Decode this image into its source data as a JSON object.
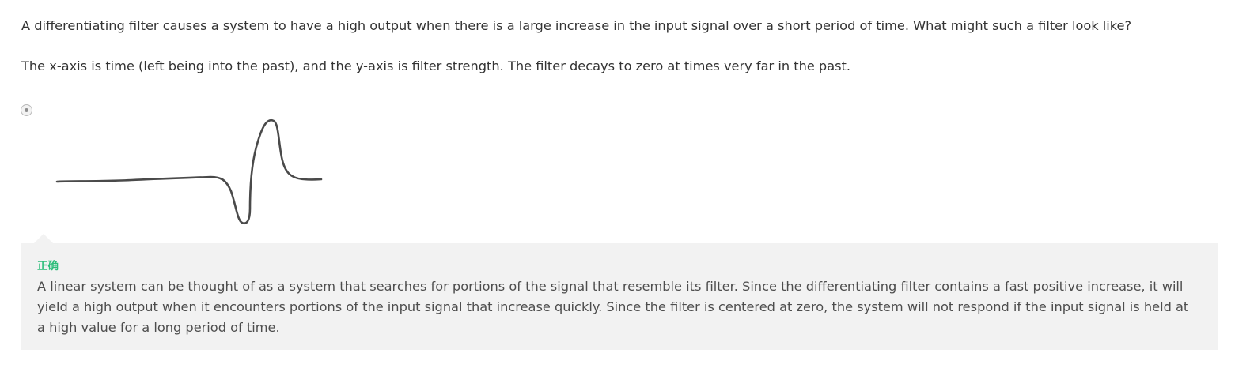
{
  "question": {
    "line1": "A differentiating filter causes a system to have a high output when there is a large increase in the input signal over a short period of time. What might such a filter look like?",
    "line2": "The x-axis is time (left being into the past), and the y-axis is filter strength. The filter decays to zero at times very far in the past."
  },
  "option": {
    "selected": true,
    "image_icon": "hand-drawn-filter-curve"
  },
  "feedback": {
    "status": "正确",
    "status_color": "#2dbd7a",
    "explanation": "A linear system can be thought of as a system that searches for portions of the signal that resemble its filter. Since the differentiating filter contains a fast positive increase, it will yield a high output when it encounters portions of the input signal that increase quickly. Since the filter is centered at zero, the system will not respond if the input signal is held at a high value for a long period of time."
  },
  "colors": {
    "text": "#333333",
    "feedback_background": "#f2f2f2",
    "curve": "#4a4a4a"
  }
}
